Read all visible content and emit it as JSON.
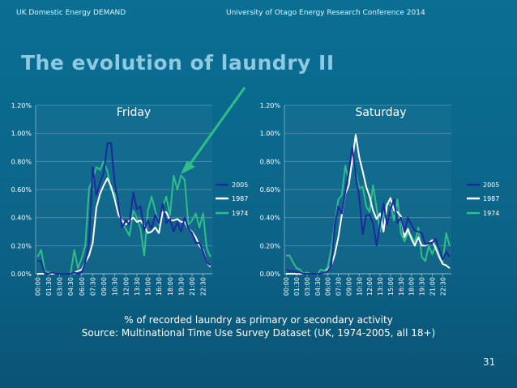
{
  "header": {
    "left": "UK Domestic Energy DEMAND",
    "center": "University of Otago Energy Research Conference 2014"
  },
  "title": "The evolution of laundry II",
  "caption": {
    "line1": "% of recorded laundry as primary or secondary activity",
    "line2": "Source: Multinational Time Use Survey Dataset (UK, 1974-2005, all 18+)"
  },
  "page_number": "31",
  "colors": {
    "2005": "#1b2a9c",
    "1987": "#ffffff",
    "1974": "#2fbf86",
    "arrow": "#2fbf86"
  },
  "chart_data": [
    {
      "type": "line",
      "title": "Friday",
      "y_ticks": [
        "0.00%",
        "0.20%",
        "0.40%",
        "0.60%",
        "0.80%",
        "1.00%",
        "1.20%"
      ],
      "ylim": [
        0,
        1.2
      ],
      "x_tick_labels": [
        "00:00",
        "01:30",
        "03:00",
        "04:30",
        "06:00",
        "07:30",
        "09:00",
        "10:30",
        "12:00",
        "13:30",
        "15:00",
        "16:30",
        "18:00",
        "19:30",
        "21:00",
        "22:30"
      ],
      "x_count": 48,
      "series": [
        {
          "name": "2005",
          "values": [
            0.09,
            0.09,
            0.0,
            0.0,
            0.01,
            0.0,
            0.0,
            0.0,
            0.0,
            0.0,
            0.01,
            0.0,
            0.01,
            0.08,
            0.22,
            0.76,
            0.56,
            0.65,
            0.72,
            0.93,
            0.93,
            0.64,
            0.5,
            0.33,
            0.38,
            0.35,
            0.58,
            0.46,
            0.48,
            0.31,
            0.38,
            0.32,
            0.42,
            0.36,
            0.5,
            0.36,
            0.39,
            0.3,
            0.37,
            0.3,
            0.4,
            0.32,
            0.29,
            0.22,
            0.22,
            0.16,
            0.08,
            0.06
          ]
        },
        {
          "name": "1987",
          "values": [
            0.0,
            0.0,
            0.0,
            0.0,
            0.0,
            0.0,
            0.0,
            0.0,
            0.0,
            0.0,
            0.01,
            0.02,
            0.03,
            0.08,
            0.13,
            0.22,
            0.47,
            0.57,
            0.63,
            0.68,
            0.62,
            0.53,
            0.42,
            0.38,
            0.35,
            0.38,
            0.4,
            0.37,
            0.38,
            0.34,
            0.29,
            0.3,
            0.33,
            0.29,
            0.44,
            0.44,
            0.38,
            0.38,
            0.39,
            0.37,
            0.37,
            0.32,
            0.3,
            0.26,
            0.2,
            0.17,
            0.08,
            0.05
          ]
        },
        {
          "name": "1974",
          "values": [
            0.12,
            0.17,
            0.02,
            0.01,
            0.01,
            0.0,
            0.0,
            0.0,
            0.0,
            0.0,
            0.17,
            0.04,
            0.11,
            0.2,
            0.61,
            0.67,
            0.76,
            0.74,
            0.8,
            0.73,
            0.6,
            0.57,
            0.5,
            0.36,
            0.32,
            0.27,
            0.45,
            0.4,
            0.32,
            0.13,
            0.45,
            0.55,
            0.45,
            0.35,
            0.48,
            0.55,
            0.42,
            0.7,
            0.6,
            0.7,
            0.67,
            0.35,
            0.38,
            0.43,
            0.33,
            0.43,
            0.18,
            0.12
          ]
        }
      ]
    },
    {
      "type": "line",
      "title": "Saturday",
      "y_ticks": [
        "0.00%",
        "0.20%",
        "0.40%",
        "0.60%",
        "0.80%",
        "1.00%",
        "1.20%"
      ],
      "ylim": [
        0,
        1.2
      ],
      "x_tick_labels": [
        "00:00",
        "01:30",
        "03:00",
        "04:30",
        "06:00",
        "07:30",
        "09:00",
        "10:30",
        "12:00",
        "13:30",
        "15:00",
        "16:30",
        "18:00",
        "19:30",
        "21:00",
        "22:30"
      ],
      "x_count": 48,
      "series": [
        {
          "name": "2005",
          "values": [
            0.03,
            0.02,
            0.02,
            0.01,
            0.01,
            0.0,
            0.0,
            0.0,
            0.0,
            0.0,
            0.0,
            0.01,
            0.02,
            0.06,
            0.35,
            0.48,
            0.43,
            0.58,
            0.73,
            0.9,
            0.7,
            0.55,
            0.28,
            0.42,
            0.42,
            0.36,
            0.2,
            0.35,
            0.5,
            0.35,
            0.46,
            0.53,
            0.36,
            0.4,
            0.3,
            0.4,
            0.35,
            0.31,
            0.3,
            0.29,
            0.21,
            0.22,
            0.22,
            0.25,
            0.17,
            0.1,
            0.16,
            0.12
          ]
        },
        {
          "name": "1987",
          "values": [
            0.0,
            0.0,
            0.0,
            0.0,
            0.0,
            0.0,
            0.0,
            0.0,
            0.0,
            0.0,
            0.0,
            0.01,
            0.03,
            0.06,
            0.14,
            0.26,
            0.42,
            0.57,
            0.63,
            0.81,
            0.99,
            0.83,
            0.73,
            0.62,
            0.55,
            0.45,
            0.39,
            0.43,
            0.3,
            0.49,
            0.54,
            0.45,
            0.44,
            0.41,
            0.26,
            0.32,
            0.25,
            0.2,
            0.26,
            0.2,
            0.2,
            0.22,
            0.24,
            0.18,
            0.12,
            0.07,
            0.06,
            0.04
          ]
        },
        {
          "name": "1974",
          "values": [
            0.13,
            0.13,
            0.08,
            0.04,
            0.03,
            0.0,
            0.01,
            0.0,
            0.0,
            0.0,
            0.03,
            0.02,
            0.05,
            0.18,
            0.36,
            0.53,
            0.56,
            0.77,
            0.66,
            0.81,
            0.72,
            0.61,
            0.62,
            0.48,
            0.44,
            0.63,
            0.47,
            0.3,
            0.42,
            0.5,
            0.49,
            0.38,
            0.53,
            0.29,
            0.23,
            0.29,
            0.27,
            0.22,
            0.33,
            0.12,
            0.09,
            0.2,
            0.14,
            0.2,
            0.15,
            0.08,
            0.29,
            0.2
          ]
        }
      ]
    }
  ]
}
